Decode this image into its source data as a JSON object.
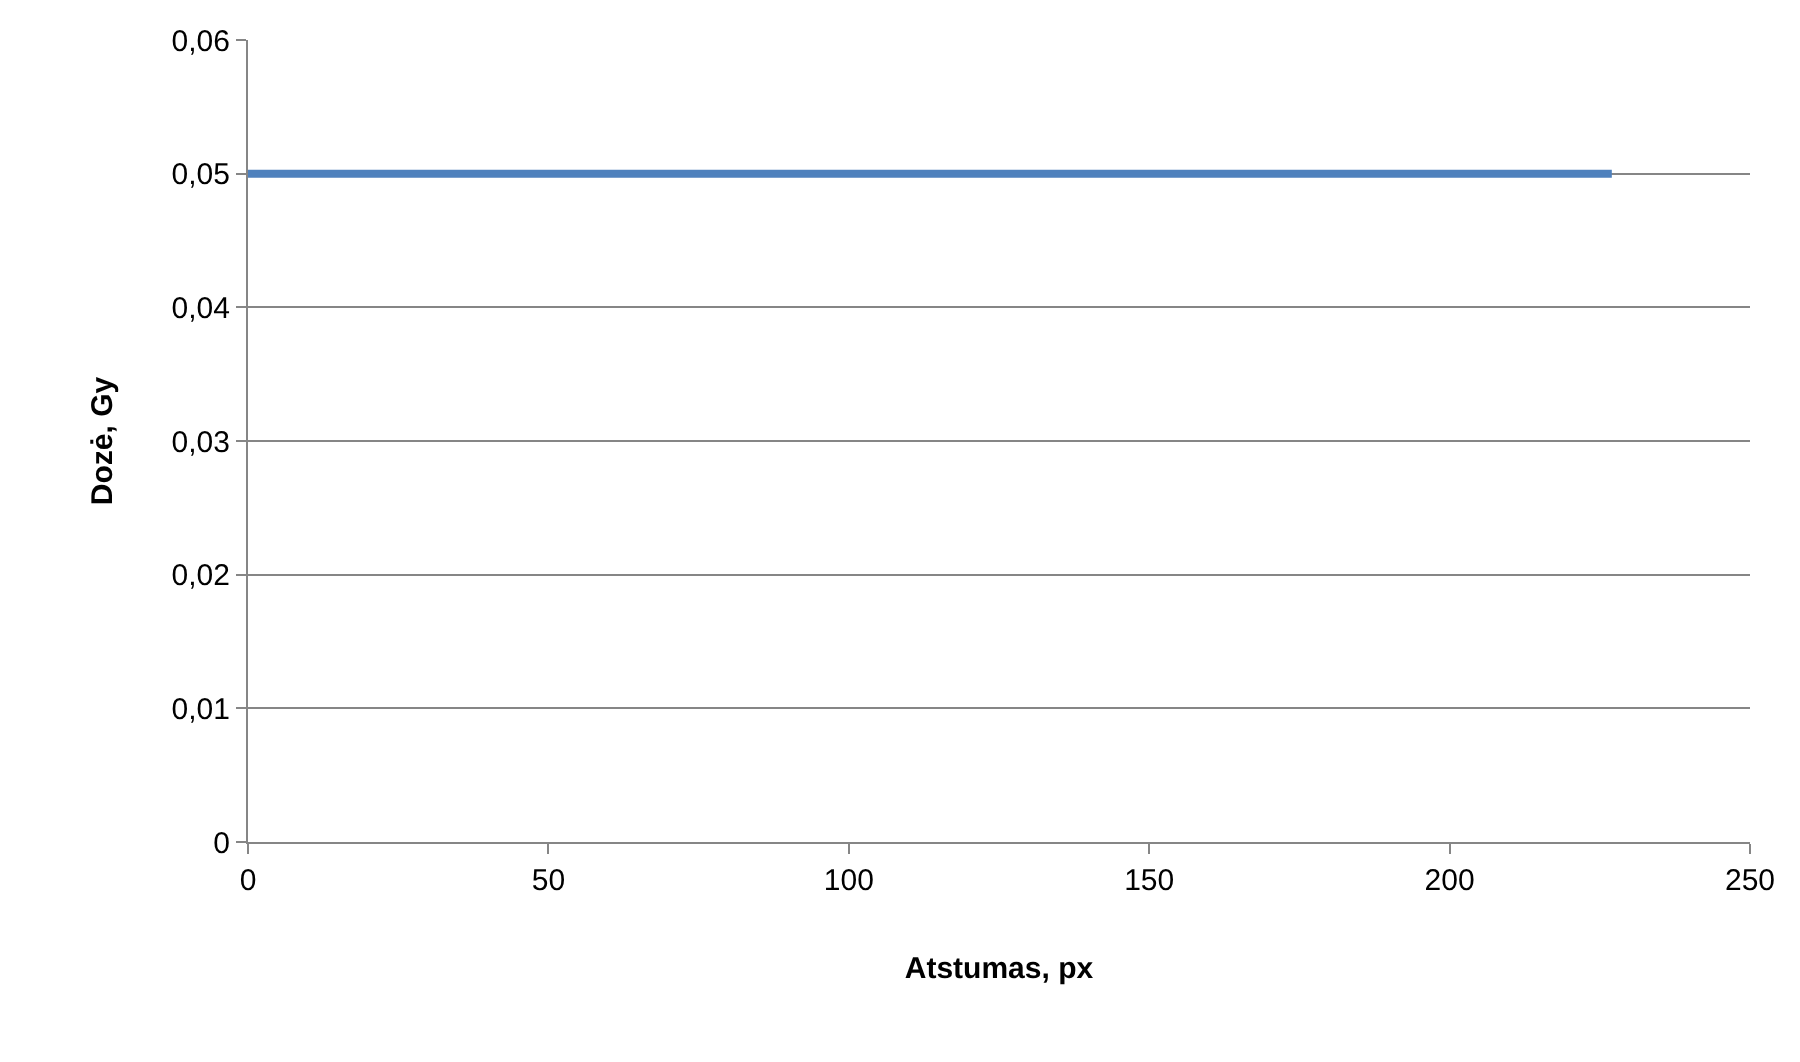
{
  "chart_data": {
    "type": "line",
    "xlabel": "Atstumas, px",
    "ylabel": "Dozė, Gy",
    "x": [
      0,
      227
    ],
    "series": [
      {
        "color": "#4f81bd",
        "values": [
          0.05,
          0.05
        ]
      }
    ],
    "xlim": [
      0,
      250
    ],
    "xticks": [
      0,
      50,
      100,
      150,
      200,
      250
    ],
    "ylim": [
      0,
      0.06
    ],
    "yticks": [
      {
        "value": 0,
        "label": "0"
      },
      {
        "value": 0.01,
        "label": "0,01"
      },
      {
        "value": 0.02,
        "label": "0,02"
      },
      {
        "value": 0.03,
        "label": "0,03"
      },
      {
        "value": 0.04,
        "label": "0,04"
      },
      {
        "value": 0.05,
        "label": "0,05"
      },
      {
        "value": 0.06,
        "label": "0,06"
      }
    ],
    "grid": "y",
    "marker": "none",
    "line_style": "solid"
  }
}
